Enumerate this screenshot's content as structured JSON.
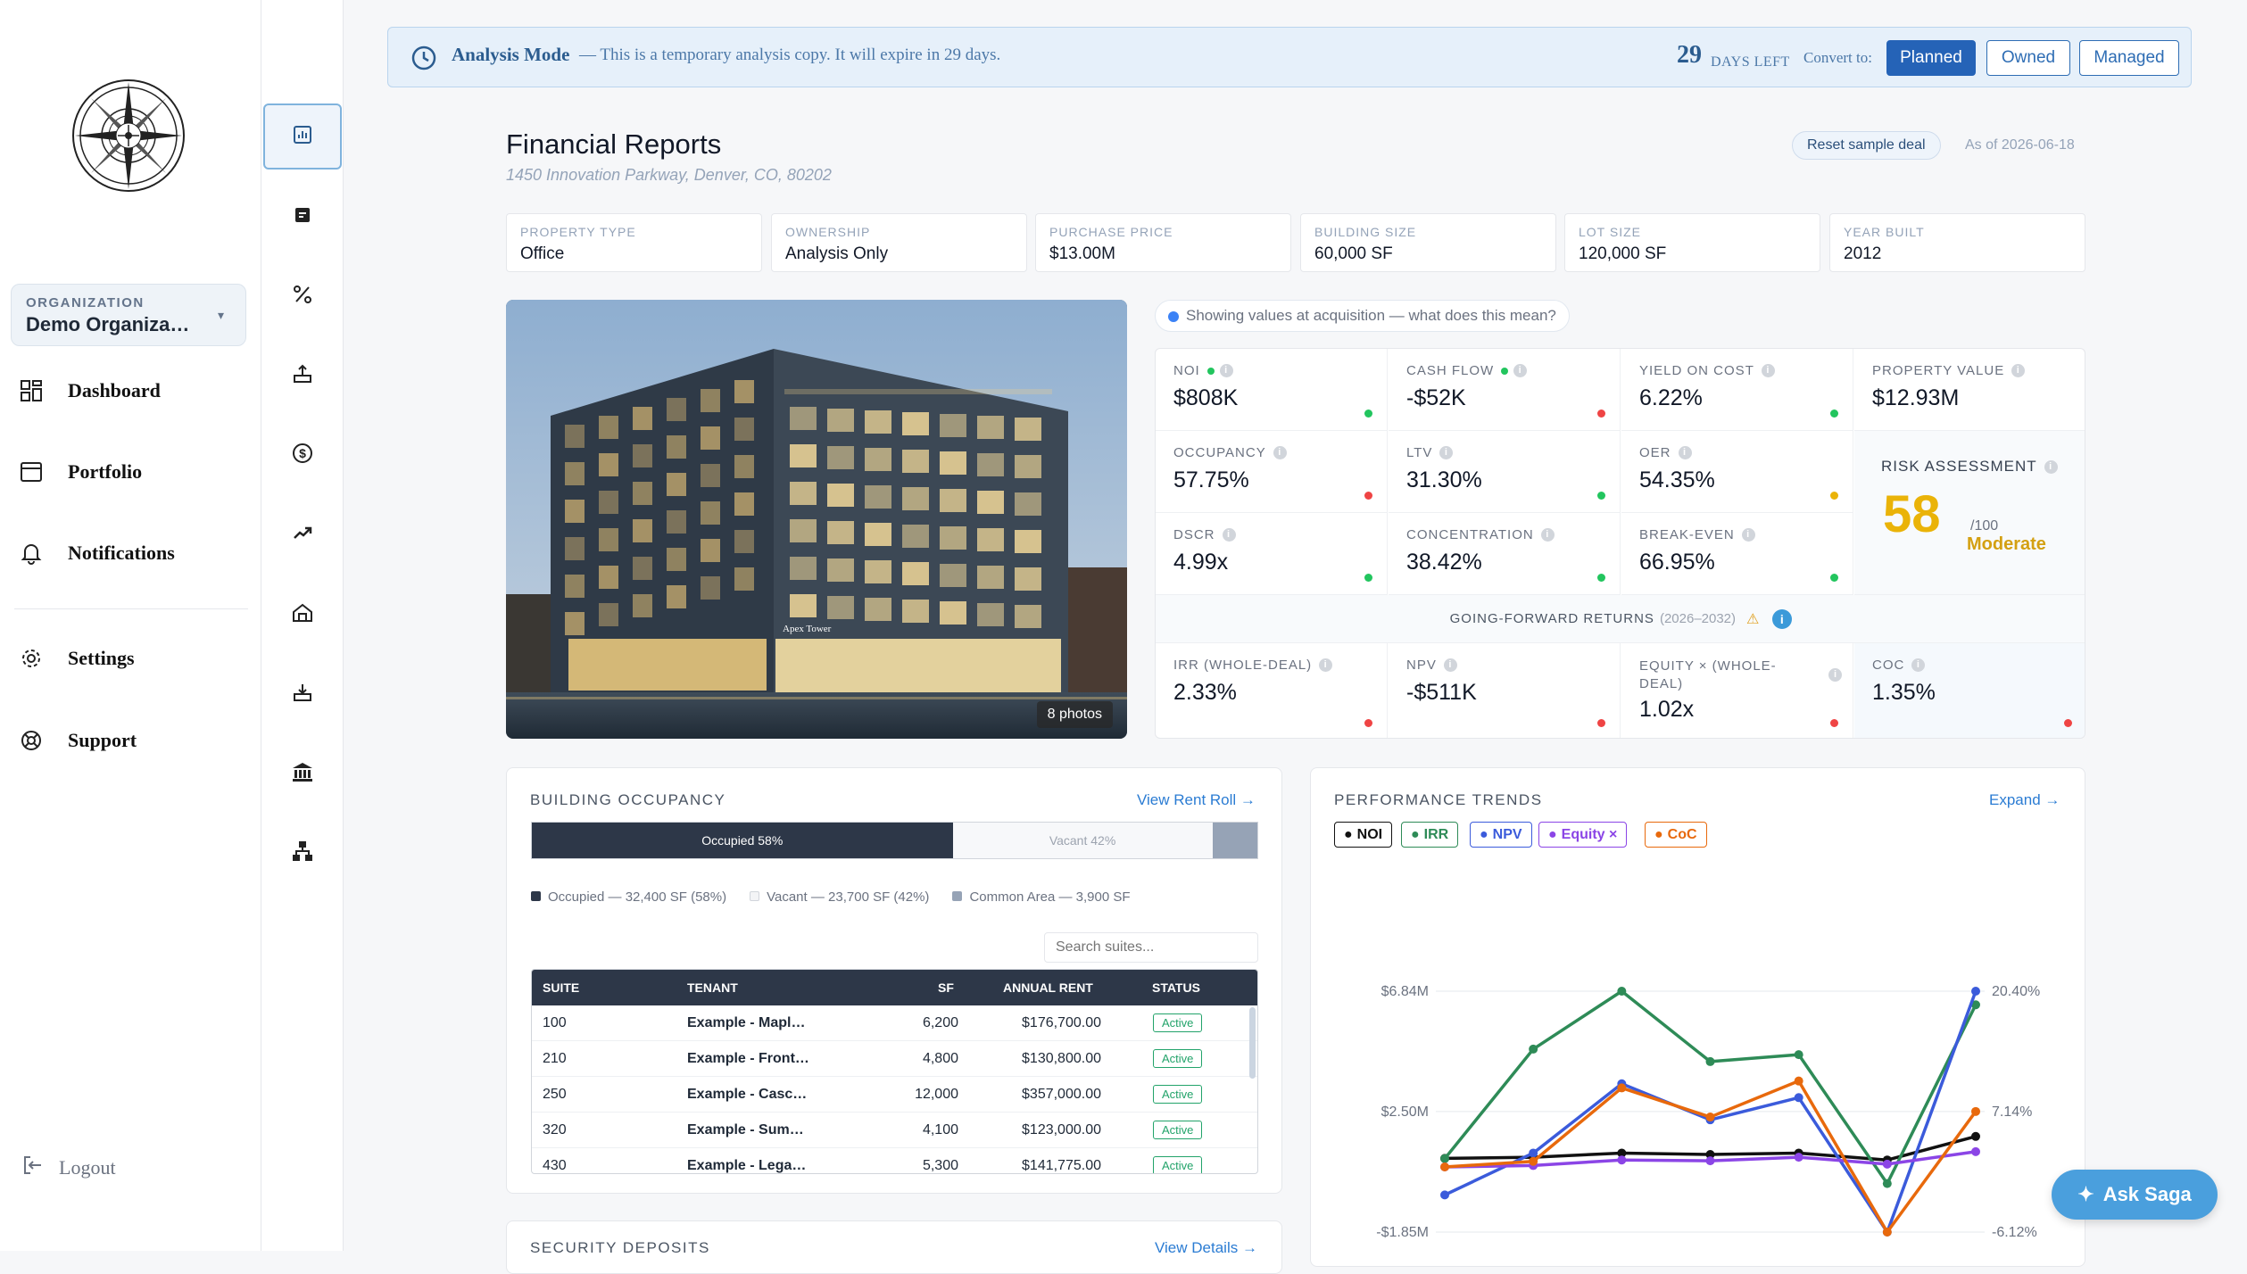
{
  "sidebar": {
    "org_label": "ORGANIZATION",
    "org_name": "Demo Organiza…",
    "nav": [
      {
        "label": "Dashboard",
        "icon": "dashboard-icon"
      },
      {
        "label": "Portfolio",
        "icon": "window-icon"
      },
      {
        "label": "Notifications",
        "icon": "bell-icon"
      },
      {
        "label": "Settings",
        "icon": "gear-icon"
      },
      {
        "label": "Support",
        "icon": "lifebuoy-icon"
      }
    ],
    "logout": "Logout"
  },
  "rail": [
    "bar-chart-icon",
    "document-icon",
    "percent-icon",
    "upload-icon",
    "dollar-cycle-icon",
    "trend-up-icon",
    "house-icon",
    "download-icon",
    "bank-icon",
    "hierarchy-icon"
  ],
  "banner": {
    "title": "Analysis Mode",
    "desc": "— This is a temporary analysis copy. It will expire in 29 days.",
    "days": "29",
    "days_label": "DAYS LEFT",
    "convert_label": "Convert to:",
    "buttons": [
      "Planned",
      "Owned",
      "Managed"
    ]
  },
  "header": {
    "title": "Financial Reports",
    "address": "1450 Innovation Parkway, Denver, CO, 80202",
    "reset": "Reset sample deal",
    "as_of": "As of 2026-06-18"
  },
  "facts": [
    {
      "label": "PROPERTY TYPE",
      "value": "Office"
    },
    {
      "label": "OWNERSHIP",
      "value": "Analysis Only"
    },
    {
      "label": "PURCHASE PRICE",
      "value": "$13.00M"
    },
    {
      "label": "BUILDING SIZE",
      "value": "60,000 SF"
    },
    {
      "label": "LOT SIZE",
      "value": "120,000 SF"
    },
    {
      "label": "YEAR BUILT",
      "value": "2012"
    }
  ],
  "photo": {
    "count": "8 photos",
    "sign": "Apex Tower"
  },
  "acquisition_note": "Showing values at acquisition — what does this mean?",
  "metrics": {
    "noi": {
      "label": "NOI",
      "value": "$808K"
    },
    "cash_flow": {
      "label": "CASH FLOW",
      "value": "-$52K"
    },
    "yield_on_cost": {
      "label": "YIELD ON COST",
      "value": "6.22%"
    },
    "property_value": {
      "label": "PROPERTY VALUE",
      "value": "$12.93M"
    },
    "occupancy": {
      "label": "OCCUPANCY",
      "value": "57.75%"
    },
    "ltv": {
      "label": "LTV",
      "value": "31.30%"
    },
    "oer": {
      "label": "OER",
      "value": "54.35%"
    },
    "dscr": {
      "label": "DSCR",
      "value": "4.99x"
    },
    "concentration": {
      "label": "CONCENTRATION",
      "value": "38.42%"
    },
    "break_even": {
      "label": "BREAK-EVEN",
      "value": "66.95%"
    },
    "risk": {
      "label": "RISK ASSESSMENT",
      "score": "58",
      "out_of": "/100",
      "rating": "Moderate"
    },
    "forward": {
      "label": "GOING-FORWARD RETURNS",
      "years": "(2026–2032)"
    },
    "irr": {
      "label": "IRR (WHOLE-DEAL)",
      "value": "2.33%"
    },
    "npv": {
      "label": "NPV",
      "value": "-$511K"
    },
    "equity_multiple": {
      "label": "EQUITY × (WHOLE-DEAL)",
      "value": "1.02x"
    },
    "coc": {
      "label": "COC",
      "value": "1.35%"
    }
  },
  "status_colors": {
    "green": "#22c55e",
    "red": "#ef4444",
    "amber": "#eab308"
  },
  "occupancy_card": {
    "title": "BUILDING OCCUPANCY",
    "link": "View Rent Roll →",
    "occupied_label": "Occupied 58%",
    "vacant_label": "Vacant 42%",
    "legend": [
      "Occupied — 32,400 SF (58%)",
      "Vacant — 23,700 SF (42%)",
      "Common Area — 3,900 SF"
    ],
    "search_placeholder": "Search suites...",
    "columns": [
      "SUITE",
      "TENANT",
      "SF",
      "ANNUAL RENT",
      "STATUS"
    ],
    "rows": [
      {
        "suite": "100",
        "tenant": "Example - Mapl…",
        "sf": "6,200",
        "rent": "$176,700.00",
        "status": "Active"
      },
      {
        "suite": "210",
        "tenant": "Example - Front…",
        "sf": "4,800",
        "rent": "$130,800.00",
        "status": "Active"
      },
      {
        "suite": "250",
        "tenant": "Example - Casc…",
        "sf": "12,000",
        "rent": "$357,000.00",
        "status": "Active"
      },
      {
        "suite": "320",
        "tenant": "Example - Sum…",
        "sf": "4,100",
        "rent": "$123,000.00",
        "status": "Active"
      },
      {
        "suite": "430",
        "tenant": "Example - Lega…",
        "sf": "5,300",
        "rent": "$141,775.00",
        "status": "Active"
      }
    ]
  },
  "deposits_card": {
    "title": "SECURITY DEPOSITS",
    "link": "View Details →"
  },
  "chart_data": {
    "type": "line",
    "title": "PERFORMANCE TRENDS",
    "expand": "Expand →",
    "left_axis_ticks": [
      "$6.84M",
      "$2.50M",
      "-$1.85M"
    ],
    "right_axis_ticks": [
      "20.40%",
      "7.14%",
      "-6.12%"
    ],
    "grid": true,
    "note": "values read as approximate positions against the left axis scale ($M)",
    "series": [
      {
        "name": "NOI",
        "color": "#111111",
        "values": [
          0.81,
          0.85,
          1.0,
          0.95,
          1.0,
          0.75,
          1.6
        ]
      },
      {
        "name": "IRR",
        "color": "#2e8b57",
        "values": [
          0.8,
          4.75,
          6.84,
          4.3,
          4.55,
          -0.1,
          6.35
        ]
      },
      {
        "name": "NPV",
        "color": "#3b5bdb",
        "values": [
          -0.51,
          1.0,
          3.5,
          2.2,
          3.0,
          -1.85,
          6.84
        ]
      },
      {
        "name": "Equity ×",
        "color": "#8b45e6",
        "values": [
          0.5,
          0.55,
          0.75,
          0.72,
          0.85,
          0.6,
          1.05
        ]
      },
      {
        "name": "CoC",
        "color": "#e8690c",
        "values": [
          0.5,
          0.7,
          3.35,
          2.3,
          3.6,
          -1.85,
          2.5
        ]
      }
    ],
    "ylim": [
      -1.85,
      6.84
    ]
  },
  "ask_saga": "Ask Saga"
}
